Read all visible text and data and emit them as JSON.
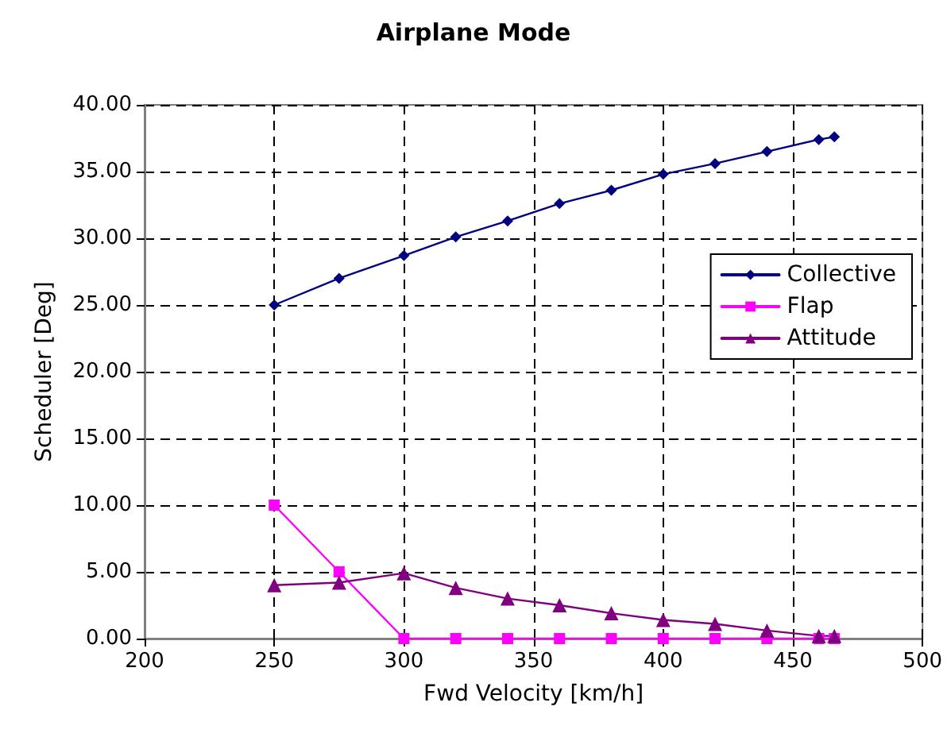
{
  "chart_data": {
    "type": "line",
    "title": "Airplane Mode",
    "xlabel": "Fwd Velocity [km/h]",
    "ylabel": "Scheduler [Deg]",
    "x": [
      250,
      275,
      300,
      320,
      340,
      360,
      380,
      400,
      420,
      440,
      460,
      466
    ],
    "series": [
      {
        "name": "Collective",
        "color": "#000080",
        "marker": "diamond",
        "values": [
          25.0,
          27.0,
          28.7,
          30.1,
          31.3,
          32.6,
          33.6,
          34.8,
          35.6,
          36.5,
          37.4,
          37.6
        ]
      },
      {
        "name": "Flap",
        "color": "#ff00ff",
        "marker": "square",
        "values": [
          10.0,
          5.0,
          0,
          0,
          0,
          0,
          0,
          0,
          0,
          0,
          0,
          0
        ]
      },
      {
        "name": "Attitude",
        "color": "#800080",
        "marker": "triangle",
        "values": [
          4.0,
          4.2,
          4.9,
          3.8,
          3.0,
          2.5,
          1.9,
          1.4,
          1.1,
          0.6,
          0.2,
          0.2
        ]
      }
    ],
    "xlim": [
      200,
      500
    ],
    "xticks": [
      200,
      250,
      300,
      350,
      400,
      450,
      500
    ],
    "ylim": [
      0,
      40
    ],
    "yticks": [
      {
        "value": 0,
        "label": "0.00"
      },
      {
        "value": 5,
        "label": "5.00"
      },
      {
        "value": 10,
        "label": "10.00"
      },
      {
        "value": 15,
        "label": "15.00"
      },
      {
        "value": 20,
        "label": "20.00"
      },
      {
        "value": 25,
        "label": "25.00"
      },
      {
        "value": 30,
        "label": "30.00"
      },
      {
        "value": 35,
        "label": "35.00"
      },
      {
        "value": 40,
        "label": "40.00"
      }
    ],
    "grid": true,
    "legend": "right",
    "line_style": "solid"
  }
}
